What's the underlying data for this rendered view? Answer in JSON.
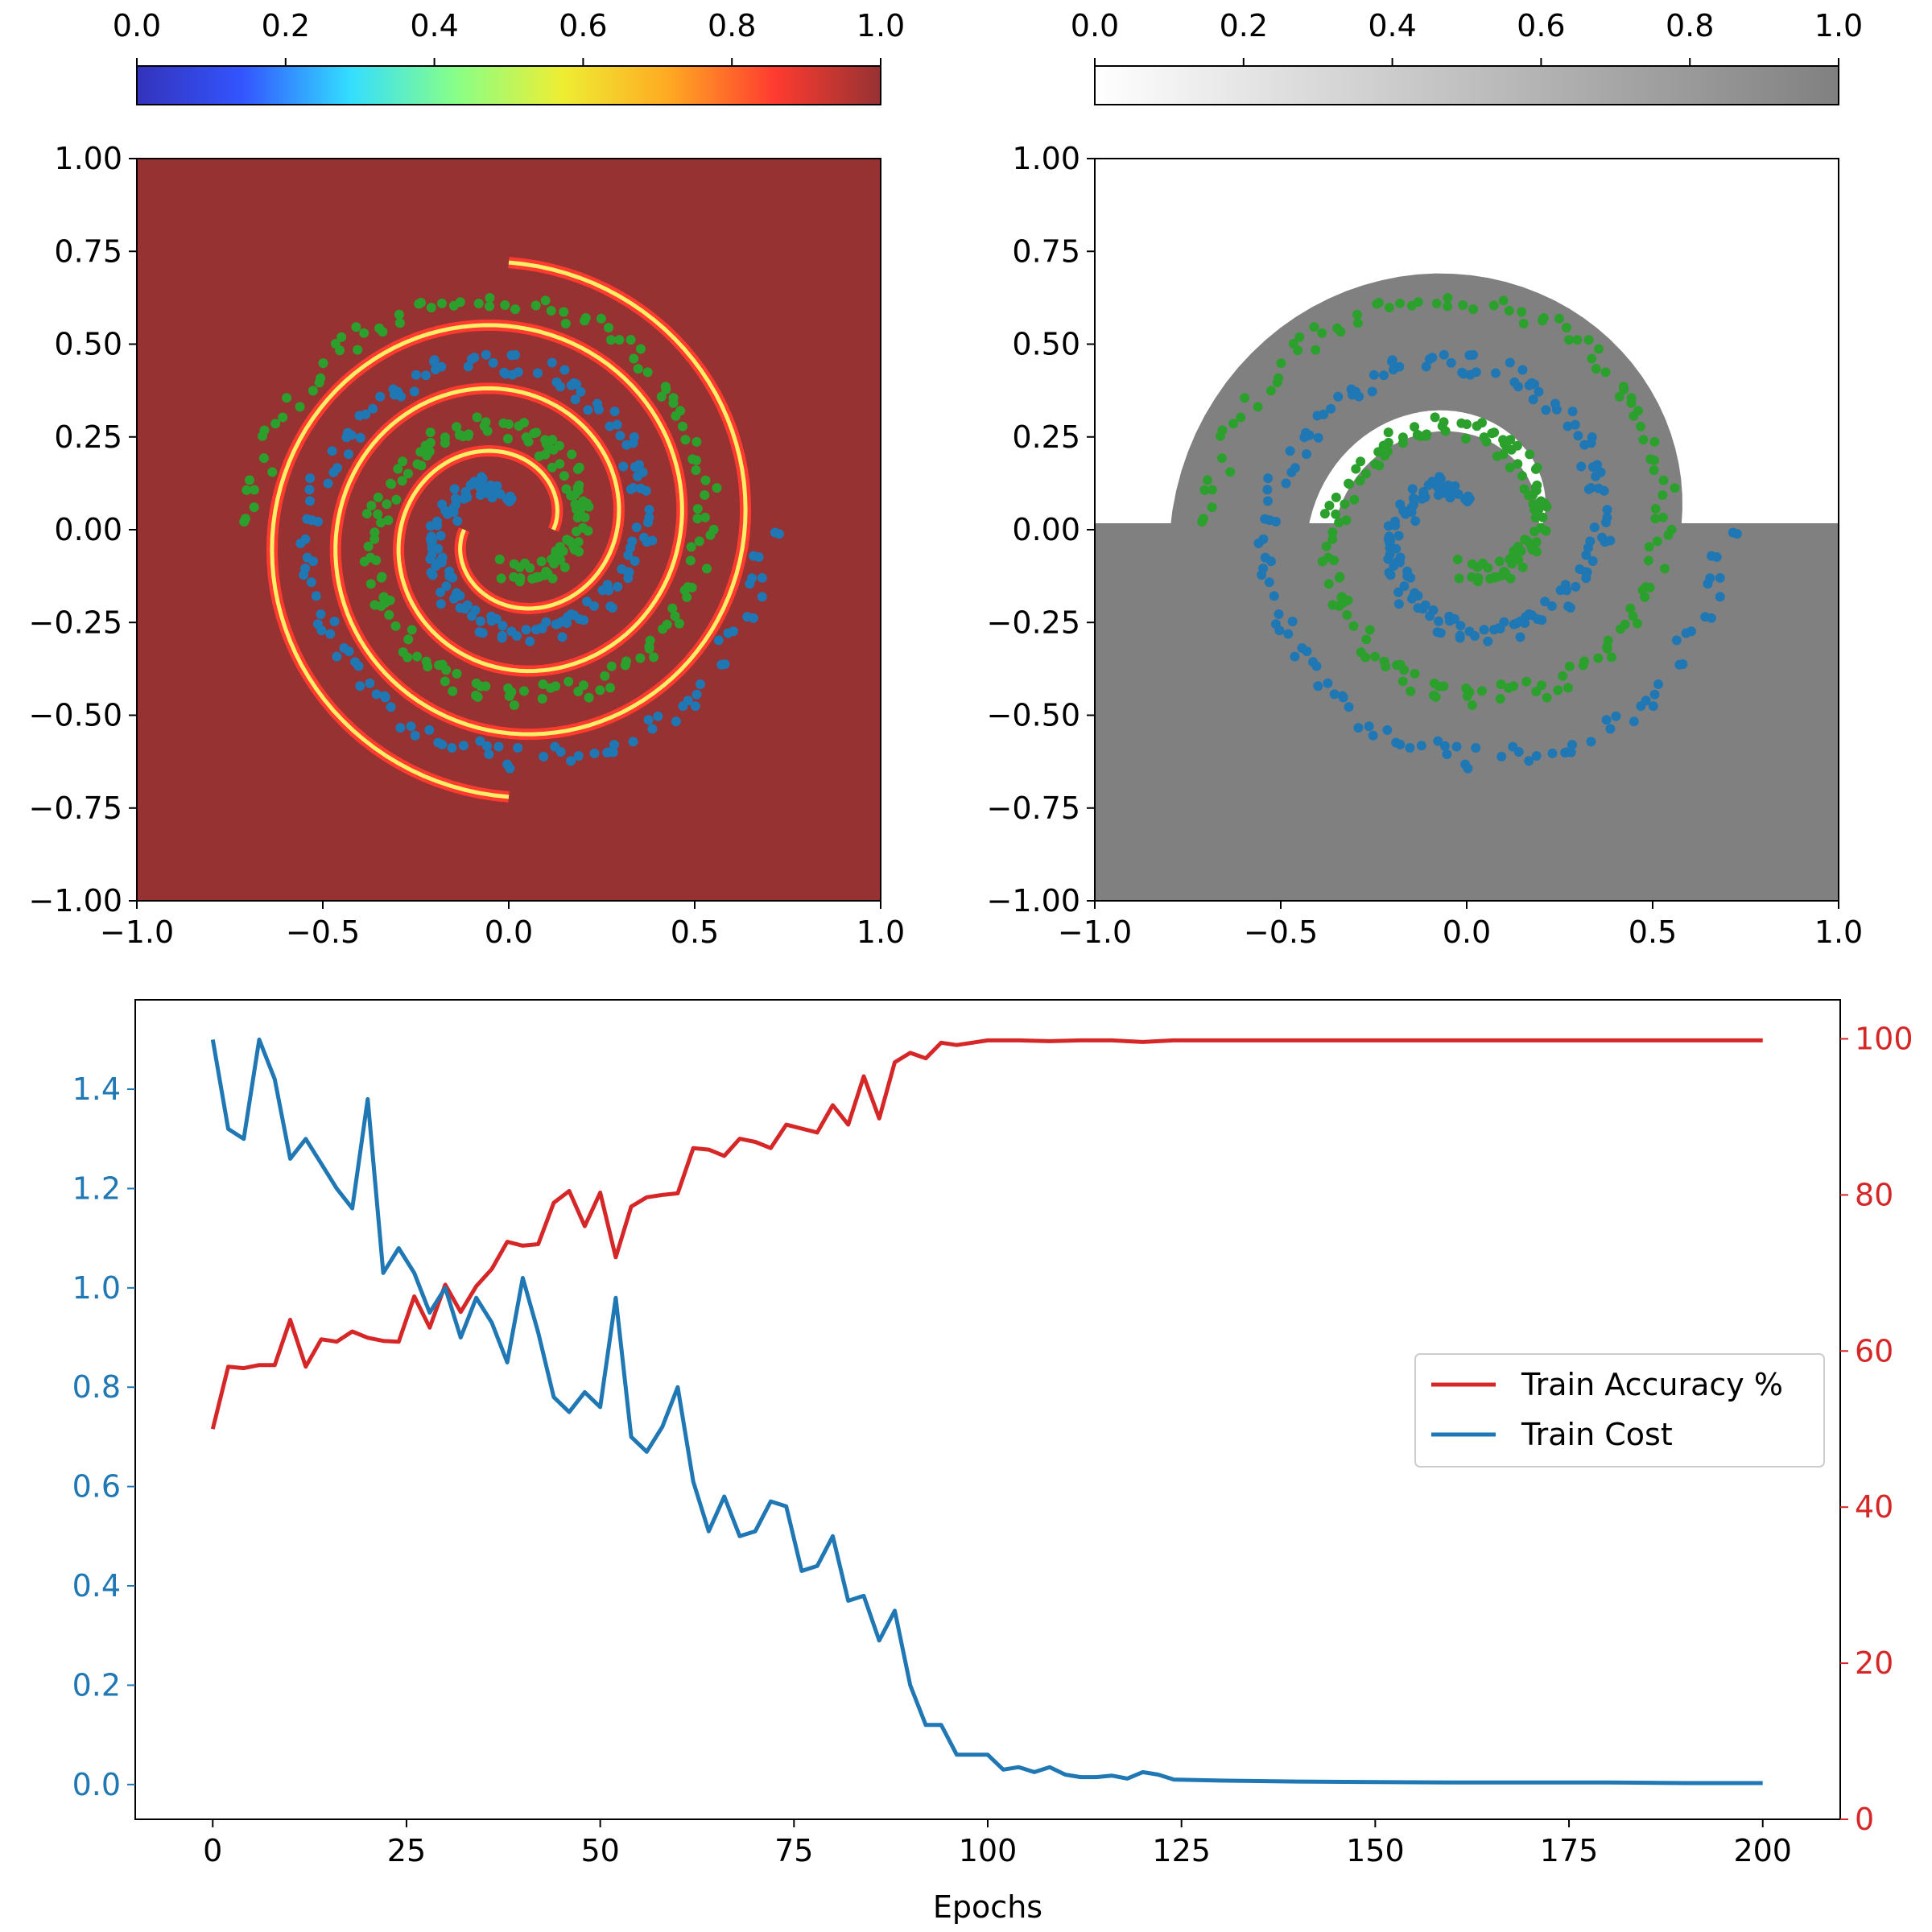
{
  "colors": {
    "accuracy": "#d62728",
    "cost": "#1f77b4",
    "class_a": "#2ca02c",
    "class_b": "#1f77b4",
    "heat_background": "#963232",
    "region_fill": "#808080",
    "jet_stops": [
      "#3333bb",
      "#3355ff",
      "#33ddff",
      "#88ff88",
      "#eeee33",
      "#ffaa22",
      "#ff3b30",
      "#963232"
    ],
    "gray_stops": [
      "#ffffff",
      "#808080"
    ]
  },
  "chart_data": [
    {
      "type": "heatmap",
      "panel": "uncertainty",
      "colormap": "jet",
      "xlim": [
        -1,
        1
      ],
      "ylim": [
        -1,
        1
      ],
      "xticks": [
        "−1.0",
        "−0.5",
        "0.0",
        "0.5",
        "1.0"
      ],
      "yticks": [
        "−1.00",
        "−0.75",
        "−0.50",
        "−0.25",
        "0.00",
        "0.25",
        "0.50",
        "0.75",
        "1.00"
      ],
      "colorbar": {
        "range": [
          0,
          1
        ],
        "ticks": [
          "0.0",
          "0.2",
          "0.4",
          "0.6",
          "0.8",
          "1.0"
        ]
      },
      "series": [
        {
          "class": "A",
          "spiral": {
            "r_start": 0.1,
            "r_end": 0.7,
            "theta_start": -1.57,
            "turns": 1.75
          }
        },
        {
          "class": "B",
          "spiral": {
            "r_start": 0.1,
            "r_end": 0.7,
            "theta_start": 1.57,
            "turns": 1.75
          }
        }
      ]
    },
    {
      "type": "heatmap",
      "panel": "decision-regions",
      "colormap": "gray_r",
      "xlim": [
        -1,
        1
      ],
      "ylim": [
        -1,
        1
      ],
      "xticks": [
        "−1.0",
        "−0.5",
        "0.0",
        "0.5",
        "1.0"
      ],
      "yticks": [
        "−1.00",
        "−0.75",
        "−0.50",
        "−0.25",
        "0.00",
        "0.25",
        "0.50",
        "0.75",
        "1.00"
      ],
      "colorbar": {
        "range": [
          0,
          1
        ],
        "ticks": [
          "0.0",
          "0.2",
          "0.4",
          "0.6",
          "0.8",
          "1.0"
        ]
      }
    },
    {
      "type": "line",
      "panel": "training",
      "xlabel": "Epochs",
      "xlim": [
        -10,
        210
      ],
      "ylim_left": [
        -0.07,
        1.58
      ],
      "ylim_right": [
        0,
        105
      ],
      "xticks": [
        0,
        25,
        50,
        75,
        100,
        125,
        150,
        175,
        200
      ],
      "yticks_left": [
        "0.0",
        "0.2",
        "0.4",
        "0.6",
        "0.8",
        "1.0",
        "1.2",
        "1.4"
      ],
      "yticks_right": [
        "0",
        "20",
        "40",
        "60",
        "80",
        "100"
      ],
      "legend": {
        "placement": "center-right",
        "entries": [
          "Train Accuracy %",
          "Train Cost"
        ]
      },
      "series": [
        {
          "name": "Train Accuracy %",
          "axis": "right",
          "x": [
            0,
            2,
            4,
            6,
            8,
            10,
            12,
            14,
            16,
            18,
            20,
            22,
            24,
            26,
            28,
            30,
            32,
            34,
            36,
            38,
            40,
            42,
            44,
            46,
            48,
            50,
            52,
            54,
            56,
            58,
            60,
            62,
            64,
            66,
            68,
            70,
            72,
            74,
            76,
            78,
            80,
            82,
            84,
            86,
            88,
            90,
            92,
            94,
            96,
            98,
            100,
            104,
            108,
            112,
            116,
            120,
            124,
            130,
            140,
            150,
            160,
            170,
            180,
            190,
            200
          ],
          "values": [
            50,
            58,
            57.8,
            58.2,
            58.2,
            64,
            58,
            61.5,
            61.2,
            62.5,
            61.7,
            61.3,
            61.2,
            67,
            63,
            68.5,
            65,
            68.3,
            70.5,
            74,
            73.5,
            73.7,
            79,
            80.5,
            76,
            80.3,
            72,
            78.5,
            79.7,
            80,
            80.2,
            86,
            85.8,
            85,
            87.2,
            86.8,
            86,
            89,
            88.5,
            88,
            91.5,
            89,
            95.2,
            89.8,
            97,
            98.2,
            97.5,
            99.5,
            99.2,
            99.5,
            99.8,
            99.8,
            99.7,
            99.8,
            99.8,
            99.6,
            99.8,
            99.8,
            99.8,
            99.8,
            99.8,
            99.8,
            99.8,
            99.8,
            99.8
          ]
        },
        {
          "name": "Train Cost",
          "axis": "left",
          "x": [
            0,
            2,
            4,
            6,
            8,
            10,
            12,
            14,
            16,
            18,
            20,
            22,
            24,
            26,
            28,
            30,
            32,
            34,
            36,
            38,
            40,
            42,
            44,
            46,
            48,
            50,
            52,
            54,
            56,
            58,
            60,
            62,
            64,
            66,
            68,
            70,
            72,
            74,
            76,
            78,
            80,
            82,
            84,
            86,
            88,
            90,
            92,
            94,
            96,
            98,
            100,
            102,
            104,
            106,
            108,
            110,
            112,
            114,
            116,
            118,
            120,
            122,
            124,
            130,
            140,
            150,
            160,
            170,
            180,
            190,
            200
          ],
          "values": [
            1.5,
            1.32,
            1.3,
            1.5,
            1.42,
            1.26,
            1.3,
            1.25,
            1.2,
            1.16,
            1.38,
            1.03,
            1.08,
            1.03,
            0.95,
            1.0,
            0.9,
            0.98,
            0.93,
            0.85,
            1.02,
            0.91,
            0.78,
            0.75,
            0.79,
            0.76,
            0.98,
            0.7,
            0.67,
            0.72,
            0.8,
            0.61,
            0.51,
            0.58,
            0.5,
            0.51,
            0.57,
            0.56,
            0.43,
            0.44,
            0.5,
            0.37,
            0.38,
            0.29,
            0.35,
            0.2,
            0.12,
            0.12,
            0.06,
            0.06,
            0.06,
            0.03,
            0.035,
            0.025,
            0.035,
            0.02,
            0.015,
            0.015,
            0.018,
            0.012,
            0.025,
            0.02,
            0.01,
            0.008,
            0.006,
            0.005,
            0.004,
            0.004,
            0.004,
            0.003,
            0.003
          ]
        }
      ]
    }
  ]
}
